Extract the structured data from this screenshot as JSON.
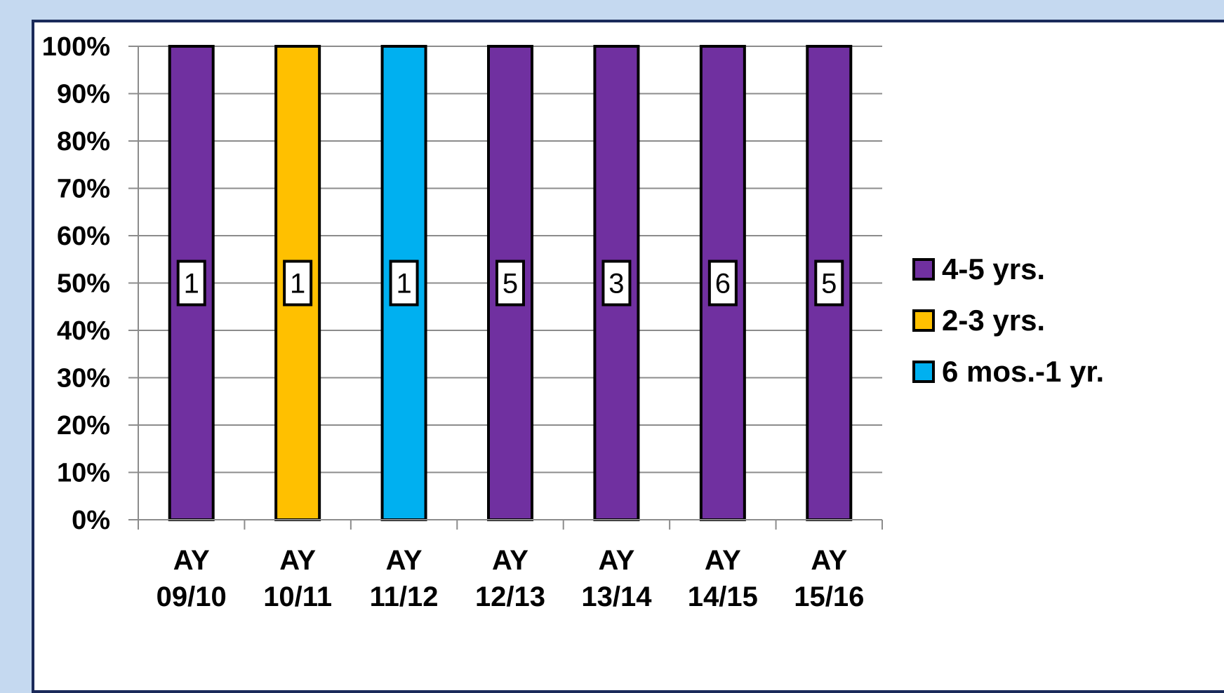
{
  "chart_data": {
    "type": "bar",
    "stacked": true,
    "percent_stacked": true,
    "categories": [
      [
        "AY",
        "09/10"
      ],
      [
        "AY",
        "10/11"
      ],
      [
        "AY",
        "11/12"
      ],
      [
        "AY",
        "12/13"
      ],
      [
        "AY",
        "13/14"
      ],
      [
        "AY",
        "14/15"
      ],
      [
        "AY",
        "15/16"
      ]
    ],
    "series": [
      {
        "name": "4-5 yrs.",
        "color": "#7030a0",
        "values": [
          1,
          0,
          0,
          5,
          3,
          6,
          5
        ]
      },
      {
        "name": "2-3 yrs.",
        "color": "#ffc000",
        "values": [
          0,
          1,
          0,
          0,
          0,
          0,
          0
        ]
      },
      {
        "name": "6 mos.-1 yr.",
        "color": "#00b0f0",
        "values": [
          0,
          0,
          1,
          0,
          0,
          0,
          0
        ]
      }
    ],
    "y_ticks": [
      "0%",
      "10%",
      "20%",
      "30%",
      "40%",
      "50%",
      "60%",
      "70%",
      "80%",
      "90%",
      "100%"
    ],
    "ylim": [
      0,
      100
    ],
    "grid": true,
    "legend_position": "right",
    "title": "",
    "xlabel": "",
    "ylabel": ""
  }
}
